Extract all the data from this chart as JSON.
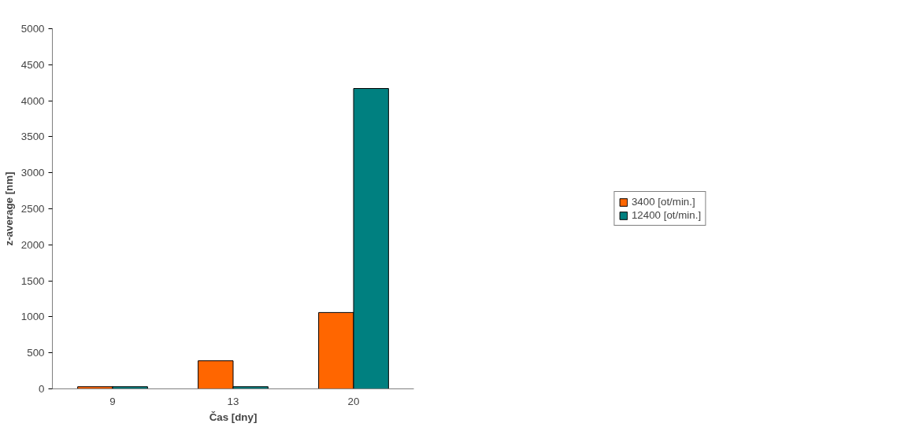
{
  "chart_data": {
    "type": "bar",
    "xlabel": "Čas [dny]",
    "ylabel": "z-average [nm]",
    "categories": [
      "9",
      "13",
      "20"
    ],
    "series": [
      {
        "name": "3400 [ot/min.]",
        "color": "#ff6600",
        "values": [
          30,
          390,
          1060
        ]
      },
      {
        "name": "12400 [ot/min.]",
        "color": "#008080",
        "values": [
          30,
          30,
          4170
        ]
      }
    ],
    "ylim": [
      0,
      5000
    ],
    "yticks": [
      0,
      500,
      1000,
      1500,
      2000,
      2500,
      3000,
      3500,
      4000,
      4500,
      5000
    ],
    "grid": false,
    "legend": "right"
  }
}
